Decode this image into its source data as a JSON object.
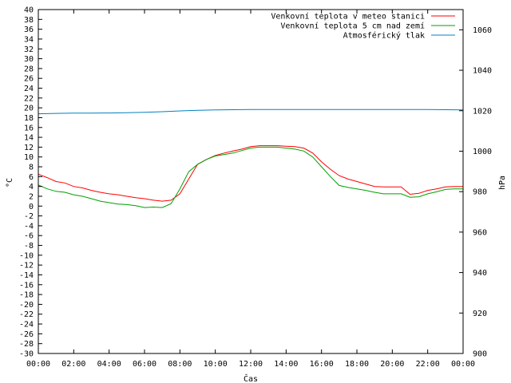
{
  "chart_data": {
    "type": "line",
    "title": "",
    "xlabel": "Čas",
    "ylabel": "°C",
    "y2label": "hPa",
    "xlim": [
      0,
      24
    ],
    "ylim": [
      -30,
      40
    ],
    "y2lim": [
      900,
      1070
    ],
    "grid": false,
    "legend_position": "top-right",
    "x_ticks": [
      "00:00",
      "02:00",
      "04:00",
      "06:00",
      "08:00",
      "10:00",
      "12:00",
      "14:00",
      "16:00",
      "18:00",
      "20:00",
      "22:00",
      "00:00"
    ],
    "y_ticks": [
      40,
      38,
      36,
      34,
      32,
      30,
      28,
      26,
      24,
      22,
      20,
      18,
      16,
      14,
      12,
      10,
      8,
      6,
      4,
      2,
      0,
      -2,
      -4,
      -6,
      -8,
      -10,
      -12,
      -14,
      -16,
      -18,
      -20,
      -22,
      -24,
      -26,
      -28,
      -30
    ],
    "y2_ticks": [
      1060,
      1040,
      1020,
      1000,
      980,
      960,
      940,
      920,
      900
    ],
    "series": [
      {
        "name": "Venkovní teplota v meteo stanici",
        "color": "#ff0000",
        "axis": "left",
        "x": [
          0,
          0.5,
          1,
          1.5,
          2,
          2.5,
          3,
          3.5,
          4,
          4.5,
          5,
          5.5,
          6,
          6.5,
          7,
          7.5,
          8,
          8.5,
          9,
          9.5,
          10,
          10.5,
          11,
          11.5,
          12,
          12.5,
          13,
          13.5,
          14,
          14.5,
          15,
          15.5,
          16,
          16.5,
          17,
          17.5,
          18,
          18.5,
          19,
          19.5,
          20,
          20.5,
          21,
          21.5,
          22,
          22.5,
          23,
          23.5,
          24
        ],
        "values": [
          6.5,
          5.8,
          5,
          4.7,
          4,
          3.7,
          3.2,
          2.8,
          2.5,
          2.3,
          2,
          1.7,
          1.5,
          1.2,
          1,
          1.2,
          2.5,
          5.5,
          8.5,
          9.5,
          10.3,
          10.8,
          11.2,
          11.6,
          12.1,
          12.3,
          12.3,
          12.3,
          12.2,
          12.1,
          11.8,
          10.8,
          9,
          7.5,
          6.2,
          5.5,
          5,
          4.5,
          4,
          3.9,
          3.9,
          3.9,
          2.4,
          2.6,
          3.2,
          3.5,
          3.9,
          4,
          4
        ]
      },
      {
        "name": "Venkovní teplota 5 cm nad zemí",
        "color": "#00a000",
        "axis": "left",
        "x": [
          0,
          0.5,
          1,
          1.5,
          2,
          2.5,
          3,
          3.5,
          4,
          4.5,
          5,
          5.5,
          6,
          6.5,
          7,
          7.5,
          8,
          8.5,
          9,
          9.5,
          10,
          10.5,
          11,
          11.5,
          12,
          12.5,
          13,
          13.5,
          14,
          14.5,
          15,
          15.5,
          16,
          16.5,
          17,
          17.5,
          18,
          18.5,
          19,
          19.5,
          20,
          20.5,
          21,
          21.5,
          22,
          22.5,
          23,
          23.5,
          24
        ],
        "values": [
          4.3,
          3.5,
          3,
          2.8,
          2.3,
          2,
          1.5,
          1,
          0.7,
          0.4,
          0.3,
          0.1,
          -0.3,
          -0.2,
          -0.3,
          0.5,
          3.5,
          7,
          8.5,
          9.5,
          10.2,
          10.5,
          10.8,
          11.3,
          11.8,
          12,
          12,
          12,
          11.8,
          11.6,
          11.2,
          10,
          8,
          6,
          4.2,
          3.8,
          3.5,
          3.2,
          2.8,
          2.5,
          2.5,
          2.5,
          1.8,
          1.9,
          2.5,
          2.9,
          3.4,
          3.5,
          3.5
        ]
      },
      {
        "name": "Atmosférický tlak",
        "color": "#0080c0",
        "axis": "right",
        "x": [
          0,
          1,
          2,
          3,
          4,
          5,
          6,
          7,
          8,
          9,
          10,
          11,
          12,
          13,
          14,
          15,
          16,
          17,
          18,
          19,
          20,
          21,
          22,
          23,
          24
        ],
        "values": [
          1018.5,
          1018.7,
          1018.8,
          1018.8,
          1018.9,
          1019,
          1019.2,
          1019.5,
          1019.9,
          1020.2,
          1020.4,
          1020.5,
          1020.6,
          1020.6,
          1020.6,
          1020.6,
          1020.6,
          1020.6,
          1020.6,
          1020.6,
          1020.6,
          1020.6,
          1020.6,
          1020.5,
          1020.4
        ]
      }
    ]
  }
}
